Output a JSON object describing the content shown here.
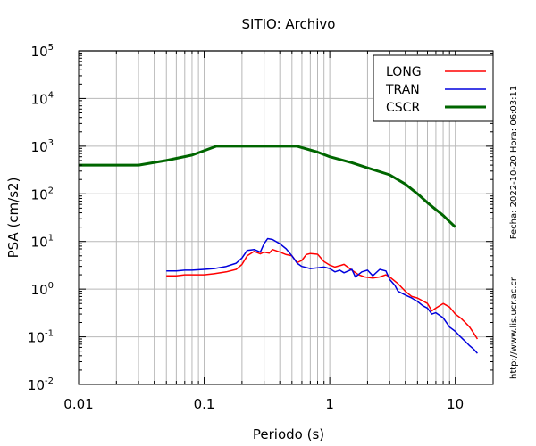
{
  "chart_data": {
    "type": "line",
    "title": "SITIO: Archivo",
    "xlabel": "Periodo (s)",
    "ylabel": "PSA (cm/s2)",
    "xscale": "log",
    "yscale": "log",
    "xlim": [
      0.01,
      20
    ],
    "ylim": [
      0.01,
      100000
    ],
    "grid": true,
    "legend_position": "top-right",
    "x_tick_labels": [
      "0.01",
      "0.1",
      "1",
      "10"
    ],
    "y_tick_labels": [
      {
        "base": "10",
        "exp": "-2"
      },
      {
        "base": "10",
        "exp": "-1"
      },
      {
        "base": "10",
        "exp": "0"
      },
      {
        "base": "10",
        "exp": "1"
      },
      {
        "base": "10",
        "exp": "2"
      },
      {
        "base": "10",
        "exp": "3"
      },
      {
        "base": "10",
        "exp": "4"
      },
      {
        "base": "10",
        "exp": "5"
      }
    ],
    "side_annotations": {
      "date": "Fecha: 2022-10-20  Hora: 06:03:11",
      "url": "http://www.lis.ucr.ac.cr"
    },
    "series": [
      {
        "name": "LONG",
        "color": "#ff0000",
        "width": 1.5,
        "points": [
          [
            0.05,
            1.9
          ],
          [
            0.06,
            1.9
          ],
          [
            0.07,
            2.0
          ],
          [
            0.08,
            2.0
          ],
          [
            0.1,
            2.0
          ],
          [
            0.12,
            2.1
          ],
          [
            0.15,
            2.3
          ],
          [
            0.18,
            2.6
          ],
          [
            0.2,
            3.3
          ],
          [
            0.22,
            5.0
          ],
          [
            0.25,
            6.2
          ],
          [
            0.28,
            5.5
          ],
          [
            0.3,
            6.0
          ],
          [
            0.33,
            5.7
          ],
          [
            0.35,
            6.8
          ],
          [
            0.4,
            6.0
          ],
          [
            0.45,
            5.3
          ],
          [
            0.5,
            5.0
          ],
          [
            0.55,
            3.6
          ],
          [
            0.6,
            4.0
          ],
          [
            0.65,
            5.3
          ],
          [
            0.7,
            5.6
          ],
          [
            0.8,
            5.4
          ],
          [
            0.9,
            3.8
          ],
          [
            1.0,
            3.2
          ],
          [
            1.1,
            2.9
          ],
          [
            1.2,
            3.1
          ],
          [
            1.3,
            3.3
          ],
          [
            1.5,
            2.5
          ],
          [
            1.7,
            2.0
          ],
          [
            1.9,
            1.8
          ],
          [
            2.2,
            1.7
          ],
          [
            2.5,
            1.8
          ],
          [
            2.8,
            2.0
          ],
          [
            3.0,
            1.8
          ],
          [
            3.5,
            1.3
          ],
          [
            4.0,
            0.9
          ],
          [
            4.5,
            0.7
          ],
          [
            5.0,
            0.65
          ],
          [
            6.0,
            0.5
          ],
          [
            6.5,
            0.35
          ],
          [
            7.0,
            0.4
          ],
          [
            7.5,
            0.45
          ],
          [
            8.0,
            0.5
          ],
          [
            9.0,
            0.42
          ],
          [
            10.0,
            0.3
          ],
          [
            11.0,
            0.25
          ],
          [
            12.0,
            0.2
          ],
          [
            13.0,
            0.16
          ],
          [
            14.0,
            0.12
          ],
          [
            15.0,
            0.09
          ]
        ]
      },
      {
        "name": "TRAN",
        "color": "#0000dd",
        "width": 1.5,
        "points": [
          [
            0.05,
            2.4
          ],
          [
            0.06,
            2.4
          ],
          [
            0.07,
            2.5
          ],
          [
            0.08,
            2.5
          ],
          [
            0.1,
            2.6
          ],
          [
            0.12,
            2.7
          ],
          [
            0.15,
            3.0
          ],
          [
            0.18,
            3.5
          ],
          [
            0.2,
            4.5
          ],
          [
            0.22,
            6.5
          ],
          [
            0.25,
            6.8
          ],
          [
            0.28,
            6.0
          ],
          [
            0.3,
            9.0
          ],
          [
            0.32,
            11.5
          ],
          [
            0.35,
            11.0
          ],
          [
            0.4,
            9.0
          ],
          [
            0.45,
            7.0
          ],
          [
            0.5,
            5.0
          ],
          [
            0.55,
            3.5
          ],
          [
            0.6,
            3.0
          ],
          [
            0.7,
            2.7
          ],
          [
            0.8,
            2.8
          ],
          [
            0.9,
            2.9
          ],
          [
            1.0,
            2.7
          ],
          [
            1.1,
            2.3
          ],
          [
            1.2,
            2.5
          ],
          [
            1.3,
            2.2
          ],
          [
            1.5,
            2.6
          ],
          [
            1.6,
            1.8
          ],
          [
            1.8,
            2.3
          ],
          [
            2.0,
            2.5
          ],
          [
            2.2,
            1.9
          ],
          [
            2.5,
            2.6
          ],
          [
            2.8,
            2.4
          ],
          [
            3.0,
            1.6
          ],
          [
            3.3,
            1.2
          ],
          [
            3.5,
            0.9
          ],
          [
            4.0,
            0.75
          ],
          [
            4.5,
            0.65
          ],
          [
            5.0,
            0.55
          ],
          [
            5.5,
            0.45
          ],
          [
            6.0,
            0.4
          ],
          [
            6.5,
            0.3
          ],
          [
            7.0,
            0.32
          ],
          [
            8.0,
            0.25
          ],
          [
            9.0,
            0.16
          ],
          [
            10.0,
            0.13
          ],
          [
            11.0,
            0.1
          ],
          [
            12.0,
            0.08
          ],
          [
            13.0,
            0.065
          ],
          [
            14.0,
            0.055
          ],
          [
            15.0,
            0.045
          ]
        ]
      },
      {
        "name": "CSCR",
        "color": "#006600",
        "width": 3,
        "points": [
          [
            0.01,
            400
          ],
          [
            0.03,
            400
          ],
          [
            0.05,
            500
          ],
          [
            0.08,
            650
          ],
          [
            0.125,
            1000
          ],
          [
            0.55,
            1000
          ],
          [
            0.8,
            750
          ],
          [
            1.0,
            600
          ],
          [
            1.5,
            450
          ],
          [
            2.0,
            350
          ],
          [
            3.0,
            250
          ],
          [
            4.0,
            160
          ],
          [
            5.0,
            100
          ],
          [
            6.0,
            65
          ],
          [
            8.0,
            35
          ],
          [
            10.0,
            20
          ]
        ]
      }
    ]
  }
}
